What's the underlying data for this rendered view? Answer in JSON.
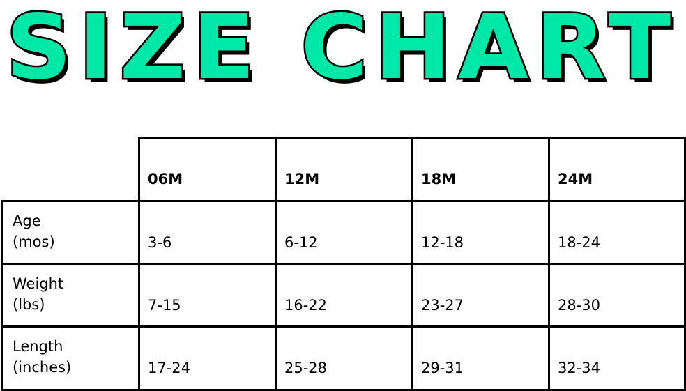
{
  "title": "SIZE CHART",
  "colors": {
    "title_fill": "#00e8a8",
    "title_outline": "#000000"
  },
  "table": {
    "columns": [
      "06M",
      "12M",
      "18M",
      "24M"
    ],
    "rows": [
      {
        "label_line1": "Age",
        "label_line2": "(mos)",
        "values": [
          "3-6",
          "6-12",
          "12-18",
          "18-24"
        ]
      },
      {
        "label_line1": "Weight",
        "label_line2": "(lbs)",
        "values": [
          "7-15",
          "16-22",
          "23-27",
          "28-30"
        ]
      },
      {
        "label_line1": "Length",
        "label_line2": "(inches)",
        "values": [
          "17-24",
          "25-28",
          "29-31",
          "32-34"
        ]
      }
    ]
  }
}
